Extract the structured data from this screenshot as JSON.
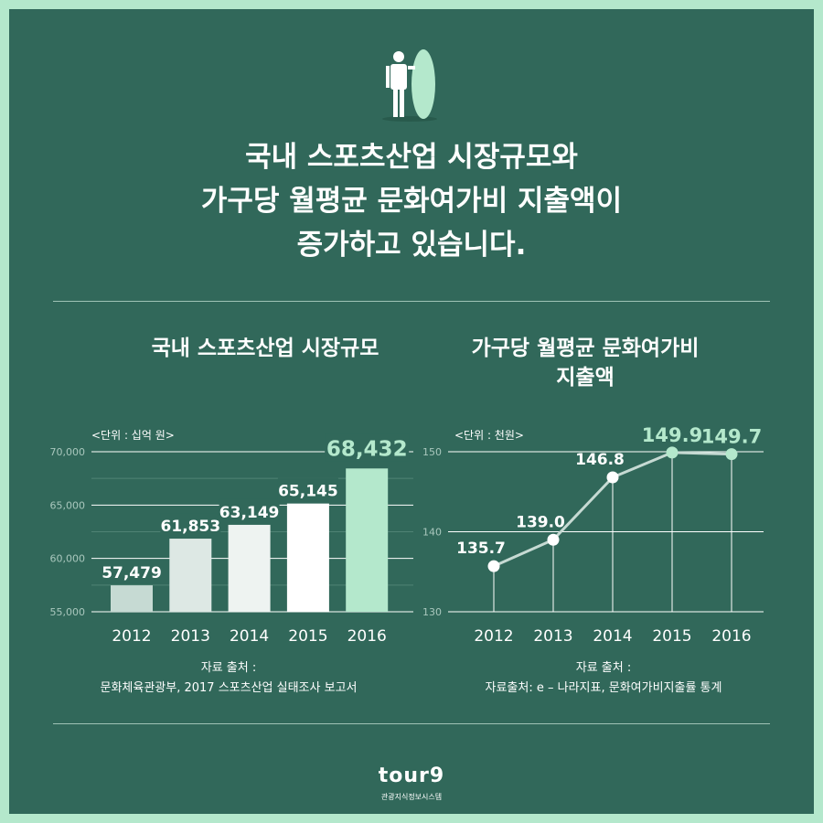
{
  "header": {
    "title_lines": [
      "국내 스포츠산업 시장규모와",
      "가구당 월평균 문화여가비 지출액이",
      "증가하고 있습니다."
    ],
    "icon": "person-with-surfboard-icon"
  },
  "colors": {
    "background": "#31685a",
    "border": "#b4e8cc",
    "accent": "#b4e8cc"
  },
  "chart_data": [
    {
      "type": "bar",
      "title": "국내 스포츠산업 시장규모",
      "unit_label": "<단위 : 십억 원>",
      "categories": [
        "2012",
        "2013",
        "2014",
        "2015",
        "2016"
      ],
      "values": [
        57479,
        61853,
        63149,
        65145,
        68432
      ],
      "value_labels": [
        "57,479",
        "61,853",
        "63,149",
        "65,145",
        "68,432"
      ],
      "ylim": [
        55000,
        70000
      ],
      "yticks": [
        "55,000",
        "60,000",
        "65,000",
        "70,000"
      ],
      "grid": true,
      "source": [
        "자료 출처 :",
        "문화체육관광부, 2017 스포츠산업 실태조사 보고서"
      ]
    },
    {
      "type": "line",
      "title": "가구당 월평균 문화여가비 지출액",
      "title_lines": [
        "가구당 월평균 문화여가비",
        "지출액"
      ],
      "unit_label": "<단위 : 천원>",
      "categories": [
        "2012",
        "2013",
        "2014",
        "2015",
        "2016"
      ],
      "values": [
        135.7,
        139.0,
        146.8,
        149.9,
        149.7
      ],
      "value_labels": [
        "135.7",
        "139.0",
        "146.8",
        "149.9",
        "149.7"
      ],
      "ylim": [
        130,
        150
      ],
      "yticks": [
        "130",
        "140",
        "150"
      ],
      "grid": true,
      "source": [
        "자료 출처 :",
        "자료출처: e – 나라지표, 문화여가비지출률 통계"
      ]
    }
  ],
  "footer": {
    "logo_text": "tour9",
    "logo_sub": "관광지식정보시스템"
  }
}
